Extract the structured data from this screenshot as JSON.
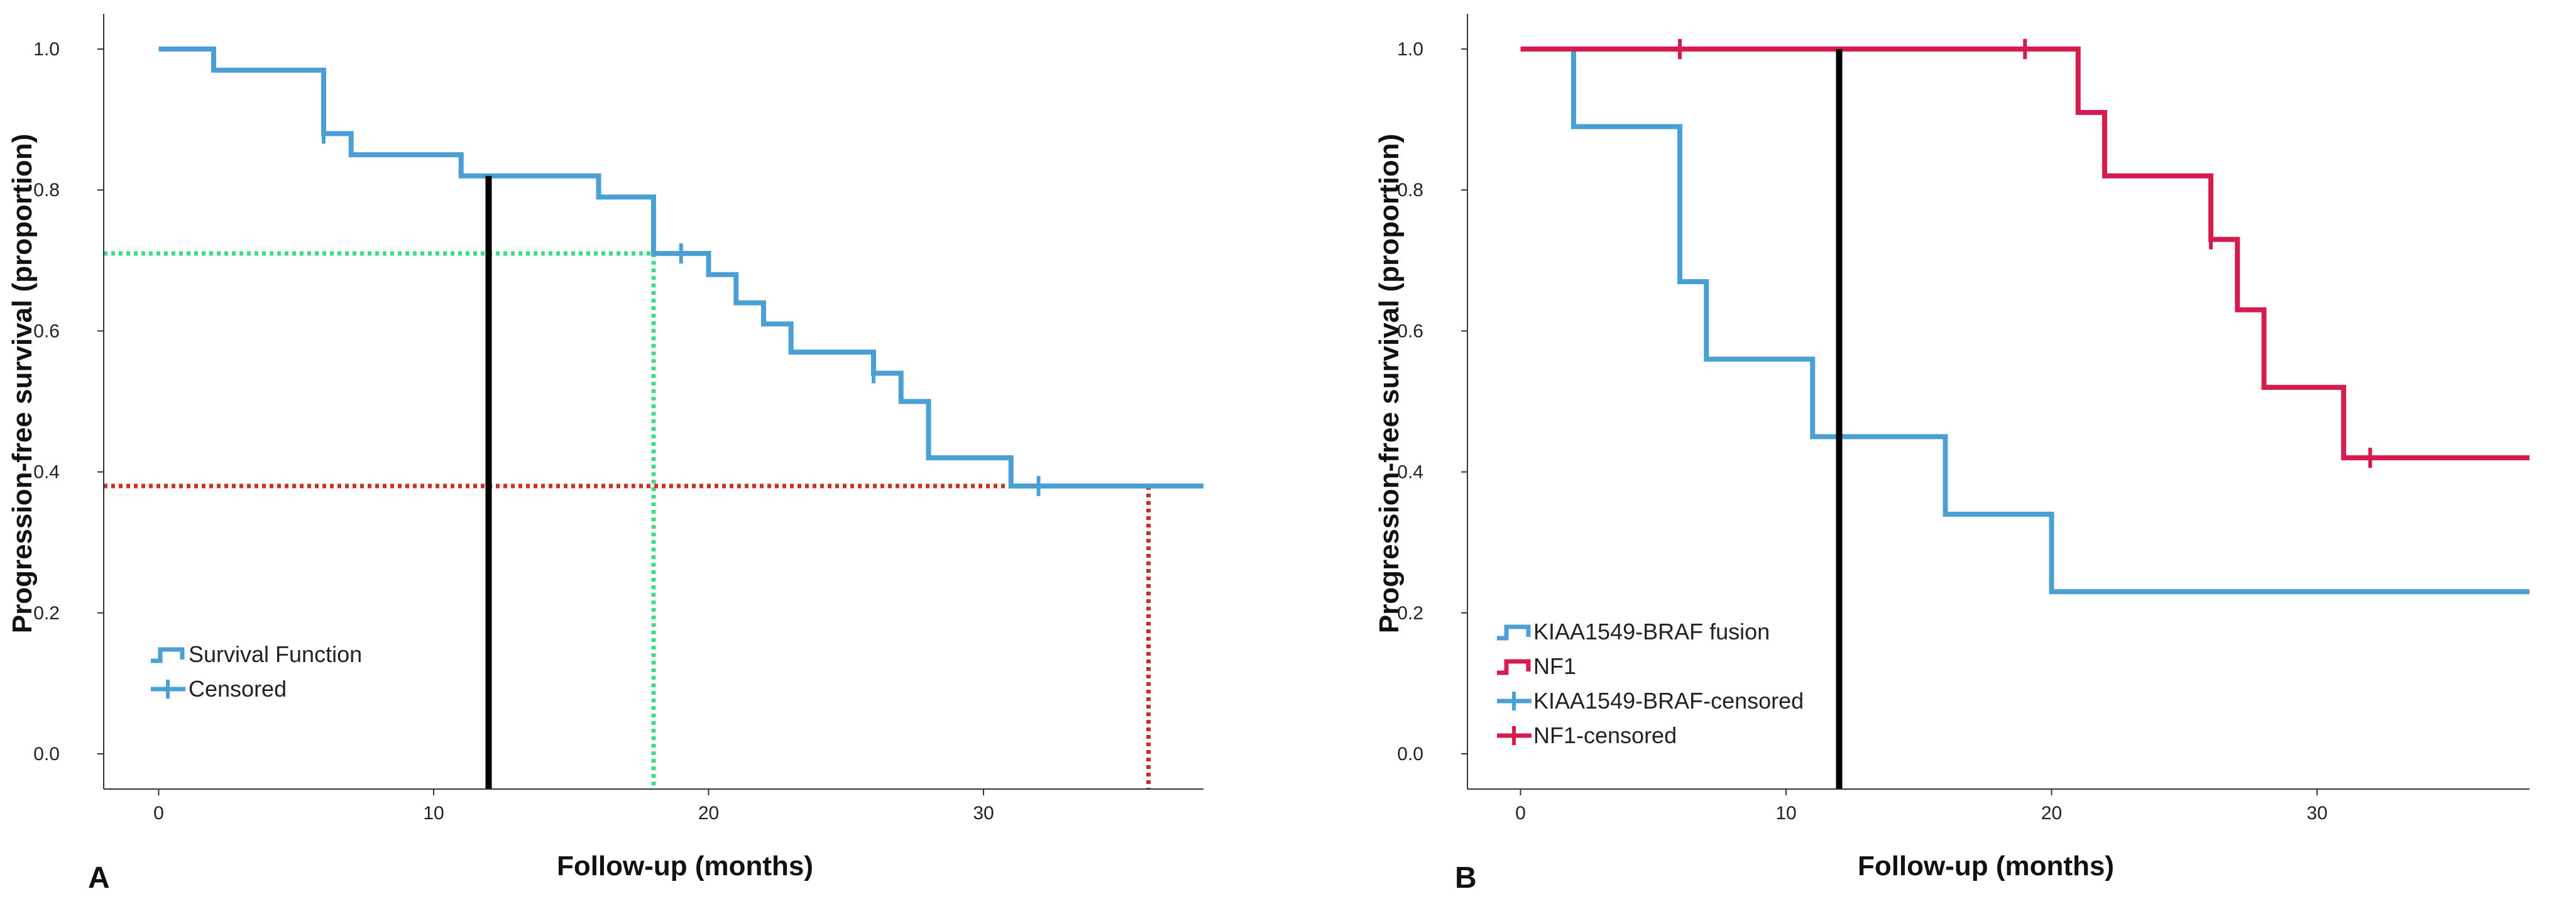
{
  "chart_data": [
    {
      "type": "line",
      "panel": "A",
      "ylabel": "Progression-free survival (proportion)",
      "xlabel": "Follow-up (months)",
      "xlim": [
        -2,
        38
      ],
      "ylim": [
        -0.05,
        1.05
      ],
      "xticks": [
        0,
        10,
        20,
        30
      ],
      "yticks": [
        0.0,
        0.2,
        0.4,
        0.6,
        0.8,
        1.0
      ],
      "colors": {
        "survival": "#4a9fd4",
        "median_line": "#000000",
        "green_ref": "#3ddc84",
        "red_ref": "#c9302c"
      },
      "series": [
        {
          "name": "Survival Function",
          "steps": [
            [
              0,
              1.0
            ],
            [
              2,
              0.97
            ],
            [
              6,
              0.88
            ],
            [
              7,
              0.85
            ],
            [
              11,
              0.82
            ],
            [
              16,
              0.79
            ],
            [
              18,
              0.71
            ],
            [
              20,
              0.68
            ],
            [
              21,
              0.64
            ],
            [
              22,
              0.61
            ],
            [
              23,
              0.57
            ],
            [
              26,
              0.54
            ],
            [
              27,
              0.5
            ],
            [
              28,
              0.42
            ],
            [
              31,
              0.38
            ],
            [
              38,
              0.38
            ]
          ],
          "censored": [
            [
              6,
              0.88
            ],
            [
              19,
              0.71
            ],
            [
              26,
              0.54
            ],
            [
              32,
              0.38
            ]
          ]
        }
      ],
      "reference_lines": {
        "black_vertical": {
          "x": 12,
          "y_top": 0.82
        },
        "green": {
          "x": 18,
          "y": 0.71
        },
        "red": {
          "x": 36,
          "y": 0.38
        }
      },
      "legend": [
        "Survival Function",
        "Censored"
      ]
    },
    {
      "type": "line",
      "panel": "B",
      "ylabel": "Progression-free survival (proportion)",
      "xlabel": "Follow-up (months)",
      "xlim": [
        -2,
        38
      ],
      "ylim": [
        -0.05,
        1.05
      ],
      "xticks": [
        0,
        10,
        20,
        30
      ],
      "yticks": [
        0.0,
        0.2,
        0.4,
        0.6,
        0.8,
        1.0
      ],
      "colors": {
        "kiaa": "#4a9fd4",
        "nf1": "#d61c4e",
        "median_line": "#000000"
      },
      "series": [
        {
          "name": "KIAA1549-BRAF fusion",
          "steps": [
            [
              0,
              1.0
            ],
            [
              2,
              0.89
            ],
            [
              6,
              0.67
            ],
            [
              7,
              0.56
            ],
            [
              11,
              0.45
            ],
            [
              16,
              0.34
            ],
            [
              20,
              0.23
            ],
            [
              38,
              0.23
            ]
          ],
          "censored": []
        },
        {
          "name": "NF1",
          "steps": [
            [
              0,
              1.0
            ],
            [
              21,
              0.91
            ],
            [
              22,
              0.82
            ],
            [
              26,
              0.73
            ],
            [
              27,
              0.63
            ],
            [
              28,
              0.52
            ],
            [
              31,
              0.42
            ],
            [
              38,
              0.42
            ]
          ],
          "censored": [
            [
              6,
              1.0
            ],
            [
              19,
              1.0
            ],
            [
              26,
              0.73
            ],
            [
              32,
              0.42
            ]
          ]
        }
      ],
      "reference_lines": {
        "black_vertical": {
          "x": 12,
          "y_top": 1.0
        }
      },
      "legend": [
        "KIAA1549-BRAF fusion",
        "NF1",
        "KIAA1549-BRAF-censored",
        "NF1-censored"
      ]
    }
  ]
}
